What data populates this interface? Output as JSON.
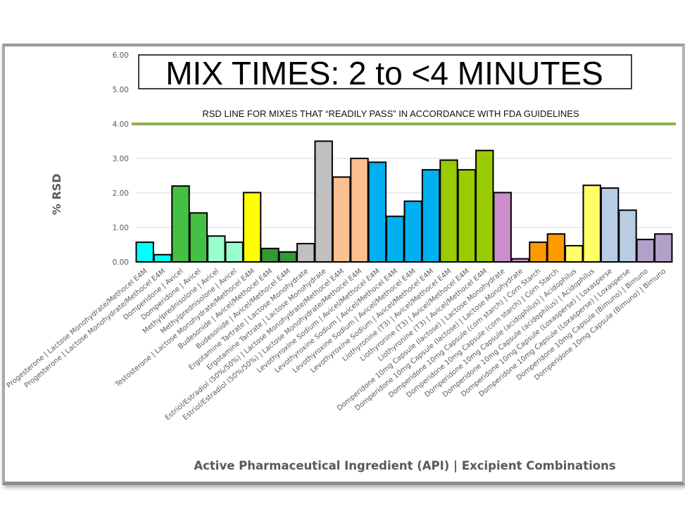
{
  "chart_data": {
    "type": "bar",
    "title": "MIX TIMES: 2 to <4 MINUTES",
    "xlabel": "Active Pharmaceutical Ingredient (API) | Excipient Combinations",
    "ylabel": "% RSD",
    "ylim": [
      0,
      6
    ],
    "yticks": [
      "0.00",
      "1.00",
      "2.00",
      "3.00",
      "4.00",
      "5.00",
      "6.00"
    ],
    "grid": true,
    "legend": "none",
    "reference_line": {
      "value": 4.0,
      "label": "RSD LINE FOR MIXES THAT “READILY PASS” IN ACCORDANCE WITH FDA GUIDELINES",
      "color": "#8fb04c"
    },
    "categories": [
      "Progesterone | Lactose Monohydrate/Methocel E4M",
      "Progesterone | Lactose Monohydrate/Methocel E4M",
      "Domperidone | Avicel",
      "Domperidone | Avicel",
      "Methylprednisolone | Avicel",
      "Methylprednisolone | Avicel",
      "Testosterone | Lactose Monohydrate/Methocel E4M",
      "Budesonide | Avicel/Methocel E4M",
      "Budesonide | Avicel/Methocel E4M",
      "Ergotamine Tartrate | Lactose Monohydrate",
      "Ergotamine Tartrate | Lactose Monohydrate",
      "Estriol/Estradiol (50%/50%) | Lactose Monohydrate/Methocel E4M",
      "Estriol/Estradiol (50%/50%) | Lactose Monohydrate/Methocel E4M",
      "Levothyroxine Sodium | Avicel/Methocel E4M",
      "Levothyroxine Sodium | Avicel/Methocel E4M",
      "Levothyroxine Sodium | Avicel/Methocel E4M",
      "Levothyroxine Sodium | Avicel/Methocel E4M",
      "Liothyronine (T3) | Avicel/Methocel E4M",
      "Liothyronine (T3) | Avicel/Methocel E4M",
      "Liothyronine (T3) | Avicel/Methocel E4M",
      "Domperidone 10mg Capsule (lactose) | Lactose Monohydrate",
      "Domperidone 10mg Capsule (lactose) | Lactose Monohydrate",
      "Domperidone 10mg Capsule (corn starch) | Corn Starch",
      "Domperidone 10mg Capsule (corn starch) | Corn Starch",
      "Domperidone 10mg Capsule (acidophilus) | Acidophilus",
      "Domperidone 10mg Capsule (acidophilus) | Acidophilus",
      "Domperidone 10mg Capsule (Loxasperse) | Loxasperse",
      "Domperidone 10mg Capsule (Loxasperse) | Loxasperse",
      "Domperidone 10mg Capsule (Bimuno) | Bimuno",
      "Domperidone 10mg Capsule (Bimuno) | Bimuno"
    ],
    "values": [
      0.57,
      0.21,
      2.2,
      1.42,
      0.75,
      0.57,
      2.01,
      0.39,
      0.29,
      0.53,
      3.5,
      2.46,
      3.0,
      2.89,
      1.32,
      1.76,
      2.67,
      2.95,
      2.67,
      3.23,
      2.01,
      0.09,
      0.57,
      0.81,
      0.47,
      2.22,
      2.14,
      1.5,
      0.65,
      0.81
    ],
    "colors": [
      "#00ffff",
      "#00ffff",
      "#44c144",
      "#44c144",
      "#99ffcc",
      "#99ffcc",
      "#ffff00",
      "#339933",
      "#339933",
      "#c0c0c0",
      "#c0c0c0",
      "#fac090",
      "#fac090",
      "#00b0f0",
      "#00b0f0",
      "#00b0f0",
      "#00b0f0",
      "#99cc00",
      "#99cc00",
      "#99cc00",
      "#cc8ecc",
      "#cc8ecc",
      "#ff9900",
      "#ff9900",
      "#ffff66",
      "#ffff66",
      "#b8cce4",
      "#b8cce4",
      "#b1a0c7",
      "#b1a0c7"
    ]
  }
}
